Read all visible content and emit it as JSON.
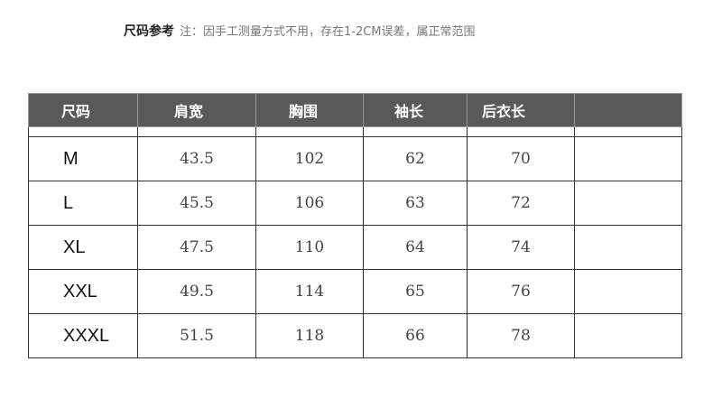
{
  "title": {
    "label": "尺码参考",
    "note": "注：因手工测量方式不用，存在1-2CM误差，属正常范围"
  },
  "table": {
    "headers": [
      "尺码",
      "肩宽",
      "胸围",
      "袖长",
      "后衣长",
      ""
    ],
    "rows": [
      [
        "M",
        "43.5",
        "102",
        "62",
        "70",
        ""
      ],
      [
        "L",
        "45.5",
        "106",
        "63",
        "72",
        ""
      ],
      [
        "XL",
        "47.5",
        "110",
        "64",
        "74",
        ""
      ],
      [
        "XXL",
        "49.5",
        "114",
        "65",
        "76",
        ""
      ],
      [
        "XXXL",
        "51.5",
        "118",
        "66",
        "78",
        ""
      ]
    ]
  },
  "colors": {
    "header_bg": "#595959"
  }
}
